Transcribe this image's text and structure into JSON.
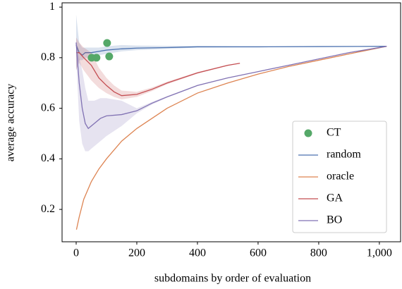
{
  "chart_data": {
    "type": "line",
    "x_label": "subdomains by order of evaluation",
    "y_label": "average accuracy",
    "xlim": [
      -46.5,
      1070
    ],
    "ylim": [
      0.072,
      1.017
    ],
    "xticks": [
      0,
      200,
      400,
      600,
      800,
      {
        "value": 1000,
        "label": "1,000"
      }
    ],
    "yticks": [
      0.2,
      0.4,
      0.6,
      0.8,
      1
    ],
    "legend": "lower right",
    "series": [
      {
        "name": "CT",
        "kind": "scatter",
        "color": "#55a868",
        "x": [
          102,
          51,
          67,
          109
        ],
        "values": [
          0.858,
          0.8,
          0.8,
          0.805
        ]
      },
      {
        "name": "random",
        "kind": "line",
        "color": "#4c72b0",
        "x": [
          0,
          10,
          20,
          30,
          50,
          75,
          100,
          150,
          200,
          300,
          400,
          500,
          600,
          800,
          1024
        ],
        "values": [
          0.85,
          0.82,
          0.81,
          0.82,
          0.82,
          0.825,
          0.83,
          0.835,
          0.838,
          0.84,
          0.843,
          0.843,
          0.843,
          0.844,
          0.845
        ],
        "lower": [
          0.75,
          0.79,
          0.79,
          0.8,
          0.8,
          0.81,
          0.815,
          0.825,
          0.83,
          0.835,
          0.84,
          0.841,
          0.842,
          0.843,
          0.845
        ],
        "upper": [
          0.97,
          0.86,
          0.84,
          0.84,
          0.84,
          0.84,
          0.845,
          0.85,
          0.848,
          0.847,
          0.847,
          0.846,
          0.845,
          0.845,
          0.845
        ]
      },
      {
        "name": "oracle",
        "kind": "line",
        "color": "#dd8452",
        "x": [
          1,
          10,
          25,
          50,
          75,
          100,
          150,
          200,
          300,
          400,
          500,
          600,
          700,
          800,
          900,
          1024
        ],
        "values": [
          0.12,
          0.17,
          0.24,
          0.31,
          0.36,
          0.4,
          0.47,
          0.52,
          0.6,
          0.66,
          0.7,
          0.735,
          0.765,
          0.79,
          0.815,
          0.845
        ]
      },
      {
        "name": "GA",
        "kind": "line",
        "color": "#c44e52",
        "x": [
          0,
          10,
          25,
          50,
          75,
          100,
          125,
          150,
          200,
          250,
          300,
          400,
          500,
          540
        ],
        "values": [
          0.82,
          0.82,
          0.8,
          0.77,
          0.72,
          0.69,
          0.665,
          0.65,
          0.655,
          0.675,
          0.7,
          0.74,
          0.77,
          0.778
        ],
        "lower": [
          0.75,
          0.78,
          0.75,
          0.71,
          0.68,
          0.66,
          0.645,
          0.635,
          0.645,
          0.668,
          0.695,
          0.737,
          0.768,
          0.778
        ],
        "upper": [
          0.88,
          0.86,
          0.84,
          0.82,
          0.76,
          0.72,
          0.69,
          0.67,
          0.665,
          0.682,
          0.705,
          0.743,
          0.772,
          0.778
        ]
      },
      {
        "name": "BO",
        "kind": "line",
        "color": "#8172b3",
        "x": [
          0,
          10,
          20,
          30,
          40,
          60,
          80,
          100,
          150,
          200,
          250,
          300,
          400,
          500,
          600,
          700,
          800,
          900,
          1024
        ],
        "values": [
          0.86,
          0.7,
          0.6,
          0.54,
          0.52,
          0.54,
          0.56,
          0.57,
          0.575,
          0.59,
          0.62,
          0.645,
          0.69,
          0.72,
          0.745,
          0.77,
          0.795,
          0.82,
          0.845
        ],
        "lower": [
          0.8,
          0.55,
          0.46,
          0.43,
          0.43,
          0.45,
          0.47,
          0.49,
          0.53,
          0.58,
          0.615,
          0.642,
          0.688,
          0.719,
          0.744,
          0.769,
          0.794,
          0.819,
          0.845
        ],
        "upper": [
          0.87,
          0.8,
          0.75,
          0.68,
          0.63,
          0.63,
          0.64,
          0.64,
          0.63,
          0.6,
          0.625,
          0.648,
          0.692,
          0.721,
          0.746,
          0.771,
          0.796,
          0.821,
          0.845
        ]
      }
    ]
  }
}
